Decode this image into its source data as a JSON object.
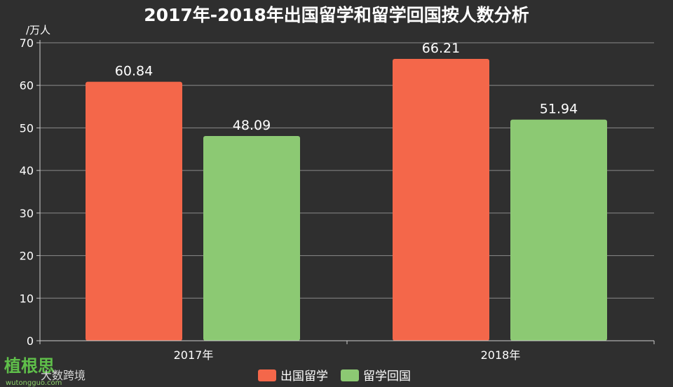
{
  "chart_data": {
    "type": "bar",
    "title": "2017年-2018年出国留学和留学回国按人数分析",
    "ylabel": "/万人",
    "categories": [
      "2017年",
      "2018年"
    ],
    "series": [
      {
        "name": "出国留学",
        "values": [
          60.84,
          66.21
        ],
        "color": "#f4674a"
      },
      {
        "name": "留学回国",
        "values": [
          48.09,
          51.94
        ],
        "color": "#8cc973"
      }
    ],
    "ylim": [
      0,
      70
    ],
    "yticks": [
      0,
      10,
      20,
      30,
      40,
      50,
      60,
      70
    ],
    "grid": true,
    "legend_position": "bottom-center"
  },
  "watermark": {
    "brand": "植根思",
    "text": "大数跨境",
    "url": "wutongguo.com"
  }
}
